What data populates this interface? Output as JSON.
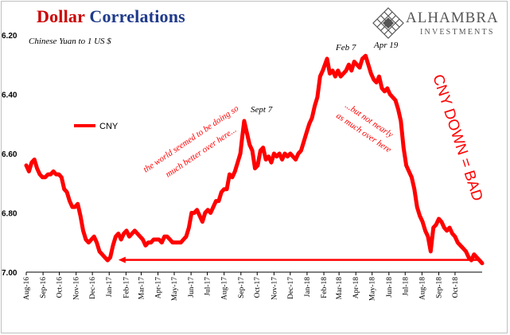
{
  "header": {
    "title_part1": "Dollar",
    "title_part2": "Correlations",
    "title_part1_color": "#cc0000",
    "title_part2_color": "#1f3a8a"
  },
  "logo": {
    "name": "ALHAMBRA",
    "sub": "INVESTMENTS",
    "icon": "diamond-lattice-icon",
    "color": "#555555"
  },
  "chart_data": {
    "type": "line",
    "subtitle": "Chinese Yuan to 1 US $",
    "y_reversed": true,
    "ylim": [
      6.2,
      7.0
    ],
    "yticks": [
      6.2,
      6.4,
      6.6,
      6.8,
      7.0
    ],
    "ytick_labels": [
      "6.20",
      "6.40",
      "6.60",
      "6.80",
      "7.00"
    ],
    "xlim": [
      "2016-08-01",
      "2018-11-20"
    ],
    "xticks": [
      "2016-08-01",
      "2016-09-01",
      "2016-10-01",
      "2016-11-01",
      "2016-12-01",
      "2017-01-01",
      "2017-02-01",
      "2017-03-01",
      "2017-04-01",
      "2017-05-01",
      "2017-06-01",
      "2017-07-01",
      "2017-08-01",
      "2017-09-01",
      "2017-10-01",
      "2017-11-01",
      "2017-12-01",
      "2018-01-01",
      "2018-02-01",
      "2018-03-01",
      "2018-04-01",
      "2018-05-01",
      "2018-06-01",
      "2018-07-01",
      "2018-08-01",
      "2018-09-01",
      "2018-10-01"
    ],
    "xtick_labels": [
      "Aug-16",
      "Sep-16",
      "Oct-16",
      "Nov-16",
      "Dec-16",
      "Jan-17",
      "Feb-17",
      "Mar-17",
      "Apr-17",
      "May-17",
      "Jun-17",
      "Jul-17",
      "Aug-17",
      "Sep-17",
      "Oct-17",
      "Nov-17",
      "Dec-17",
      "Jan-18",
      "Feb-18",
      "Mar-18",
      "Apr-18",
      "May-18",
      "Jun-18",
      "Jul-18",
      "Aug-18",
      "Sep-18",
      "Oct-18"
    ],
    "grid": false,
    "legend": "left",
    "series": [
      {
        "name": "CNY",
        "color": "#ff0000",
        "points": [
          [
            "2016-08-01",
            6.64
          ],
          [
            "2016-08-06",
            6.66
          ],
          [
            "2016-08-11",
            6.63
          ],
          [
            "2016-08-16",
            6.62
          ],
          [
            "2016-08-21",
            6.65
          ],
          [
            "2016-08-26",
            6.67
          ],
          [
            "2016-08-31",
            6.68
          ],
          [
            "2016-09-05",
            6.68
          ],
          [
            "2016-09-10",
            6.67
          ],
          [
            "2016-09-15",
            6.67
          ],
          [
            "2016-09-20",
            6.66
          ],
          [
            "2016-09-25",
            6.67
          ],
          [
            "2016-09-30",
            6.67
          ],
          [
            "2016-10-05",
            6.68
          ],
          [
            "2016-10-10",
            6.72
          ],
          [
            "2016-10-15",
            6.73
          ],
          [
            "2016-10-20",
            6.76
          ],
          [
            "2016-10-25",
            6.78
          ],
          [
            "2016-10-30",
            6.78
          ],
          [
            "2016-11-04",
            6.77
          ],
          [
            "2016-11-09",
            6.81
          ],
          [
            "2016-11-14",
            6.86
          ],
          [
            "2016-11-19",
            6.89
          ],
          [
            "2016-11-24",
            6.9
          ],
          [
            "2016-11-29",
            6.89
          ],
          [
            "2016-12-04",
            6.88
          ],
          [
            "2016-12-09",
            6.9
          ],
          [
            "2016-12-14",
            6.93
          ],
          [
            "2016-12-19",
            6.94
          ],
          [
            "2016-12-24",
            6.95
          ],
          [
            "2016-12-29",
            6.96
          ],
          [
            "2017-01-03",
            6.95
          ],
          [
            "2017-01-08",
            6.91
          ],
          [
            "2017-01-13",
            6.88
          ],
          [
            "2017-01-18",
            6.87
          ],
          [
            "2017-01-23",
            6.89
          ],
          [
            "2017-01-28",
            6.87
          ],
          [
            "2017-02-02",
            6.86
          ],
          [
            "2017-02-07",
            6.88
          ],
          [
            "2017-02-12",
            6.87
          ],
          [
            "2017-02-17",
            6.86
          ],
          [
            "2017-02-22",
            6.87
          ],
          [
            "2017-02-27",
            6.88
          ],
          [
            "2017-03-04",
            6.89
          ],
          [
            "2017-03-09",
            6.91
          ],
          [
            "2017-03-14",
            6.9
          ],
          [
            "2017-03-19",
            6.9
          ],
          [
            "2017-03-24",
            6.89
          ],
          [
            "2017-03-29",
            6.89
          ],
          [
            "2017-04-03",
            6.89
          ],
          [
            "2017-04-08",
            6.9
          ],
          [
            "2017-04-13",
            6.88
          ],
          [
            "2017-04-18",
            6.88
          ],
          [
            "2017-04-23",
            6.89
          ],
          [
            "2017-04-28",
            6.9
          ],
          [
            "2017-05-03",
            6.9
          ],
          [
            "2017-05-08",
            6.9
          ],
          [
            "2017-05-13",
            6.9
          ],
          [
            "2017-05-18",
            6.89
          ],
          [
            "2017-05-23",
            6.88
          ],
          [
            "2017-05-28",
            6.85
          ],
          [
            "2017-06-02",
            6.8
          ],
          [
            "2017-06-07",
            6.8
          ],
          [
            "2017-06-12",
            6.79
          ],
          [
            "2017-06-17",
            6.81
          ],
          [
            "2017-06-22",
            6.83
          ],
          [
            "2017-06-27",
            6.8
          ],
          [
            "2017-07-02",
            6.79
          ],
          [
            "2017-07-07",
            6.8
          ],
          [
            "2017-07-12",
            6.78
          ],
          [
            "2017-07-17",
            6.76
          ],
          [
            "2017-07-22",
            6.76
          ],
          [
            "2017-07-27",
            6.73
          ],
          [
            "2017-08-01",
            6.72
          ],
          [
            "2017-08-06",
            6.72
          ],
          [
            "2017-08-11",
            6.67
          ],
          [
            "2017-08-16",
            6.68
          ],
          [
            "2017-08-21",
            6.66
          ],
          [
            "2017-08-26",
            6.63
          ],
          [
            "2017-08-31",
            6.6
          ],
          [
            "2017-09-03",
            6.55
          ],
          [
            "2017-09-07",
            6.49
          ],
          [
            "2017-09-12",
            6.53
          ],
          [
            "2017-09-17",
            6.57
          ],
          [
            "2017-09-22",
            6.59
          ],
          [
            "2017-09-27",
            6.65
          ],
          [
            "2017-10-02",
            6.64
          ],
          [
            "2017-10-07",
            6.59
          ],
          [
            "2017-10-12",
            6.58
          ],
          [
            "2017-10-17",
            6.62
          ],
          [
            "2017-10-22",
            6.61
          ],
          [
            "2017-10-27",
            6.63
          ],
          [
            "2017-11-01",
            6.6
          ],
          [
            "2017-11-06",
            6.61
          ],
          [
            "2017-11-11",
            6.6
          ],
          [
            "2017-11-16",
            6.62
          ],
          [
            "2017-11-21",
            6.6
          ],
          [
            "2017-11-26",
            6.61
          ],
          [
            "2017-12-01",
            6.6
          ],
          [
            "2017-12-06",
            6.61
          ],
          [
            "2017-12-11",
            6.62
          ],
          [
            "2017-12-16",
            6.6
          ],
          [
            "2017-12-21",
            6.59
          ],
          [
            "2017-12-26",
            6.56
          ],
          [
            "2017-12-31",
            6.53
          ],
          [
            "2018-01-05",
            6.5
          ],
          [
            "2018-01-10",
            6.48
          ],
          [
            "2018-01-15",
            6.44
          ],
          [
            "2018-01-20",
            6.41
          ],
          [
            "2018-01-25",
            6.34
          ],
          [
            "2018-01-30",
            6.32
          ],
          [
            "2018-02-03",
            6.3
          ],
          [
            "2018-02-07",
            6.28
          ],
          [
            "2018-02-12",
            6.33
          ],
          [
            "2018-02-17",
            6.32
          ],
          [
            "2018-02-22",
            6.34
          ],
          [
            "2018-02-27",
            6.32
          ],
          [
            "2018-03-04",
            6.34
          ],
          [
            "2018-03-09",
            6.33
          ],
          [
            "2018-03-14",
            6.32
          ],
          [
            "2018-03-19",
            6.3
          ],
          [
            "2018-03-24",
            6.32
          ],
          [
            "2018-03-29",
            6.29
          ],
          [
            "2018-04-03",
            6.3
          ],
          [
            "2018-04-08",
            6.31
          ],
          [
            "2018-04-13",
            6.28
          ],
          [
            "2018-04-19",
            6.27
          ],
          [
            "2018-04-24",
            6.3
          ],
          [
            "2018-04-29",
            6.33
          ],
          [
            "2018-05-04",
            6.35
          ],
          [
            "2018-05-09",
            6.36
          ],
          [
            "2018-05-14",
            6.34
          ],
          [
            "2018-05-19",
            6.38
          ],
          [
            "2018-05-24",
            6.39
          ],
          [
            "2018-05-29",
            6.38
          ],
          [
            "2018-06-03",
            6.4
          ],
          [
            "2018-06-08",
            6.41
          ],
          [
            "2018-06-13",
            6.42
          ],
          [
            "2018-06-18",
            6.45
          ],
          [
            "2018-06-23",
            6.49
          ],
          [
            "2018-06-28",
            6.58
          ],
          [
            "2018-07-03",
            6.64
          ],
          [
            "2018-07-08",
            6.66
          ],
          [
            "2018-07-13",
            6.68
          ],
          [
            "2018-07-18",
            6.72
          ],
          [
            "2018-07-23",
            6.78
          ],
          [
            "2018-07-28",
            6.81
          ],
          [
            "2018-08-02",
            6.83
          ],
          [
            "2018-08-07",
            6.86
          ],
          [
            "2018-08-12",
            6.88
          ],
          [
            "2018-08-17",
            6.93
          ],
          [
            "2018-08-22",
            6.85
          ],
          [
            "2018-08-27",
            6.84
          ],
          [
            "2018-09-01",
            6.82
          ],
          [
            "2018-09-06",
            6.83
          ],
          [
            "2018-09-11",
            6.85
          ],
          [
            "2018-09-16",
            6.86
          ],
          [
            "2018-09-21",
            6.85
          ],
          [
            "2018-09-26",
            6.87
          ],
          [
            "2018-10-01",
            6.88
          ],
          [
            "2018-10-06",
            6.9
          ],
          [
            "2018-10-11",
            6.91
          ],
          [
            "2018-10-16",
            6.92
          ],
          [
            "2018-10-21",
            6.93
          ],
          [
            "2018-10-26",
            6.95
          ],
          [
            "2018-10-31",
            6.96
          ],
          [
            "2018-11-05",
            6.94
          ],
          [
            "2018-11-10",
            6.95
          ],
          [
            "2018-11-15",
            6.96
          ],
          [
            "2018-11-20",
            6.97
          ]
        ]
      }
    ],
    "annotations": [
      {
        "text": "Sept 7",
        "date": "2017-09-07",
        "value": 6.49
      },
      {
        "text": "Feb 7",
        "date": "2018-02-07",
        "value": 6.28
      },
      {
        "text": "Apr 19",
        "date": "2018-04-19",
        "value": 6.27
      },
      {
        "text": "the world seemed to be doing so",
        "color": "#ff0000"
      },
      {
        "text": "much better over here...",
        "color": "#ff0000"
      },
      {
        "text": "...but not nearly",
        "color": "#ff0000"
      },
      {
        "text": "as much over here",
        "color": "#ff0000"
      },
      {
        "text": "CNY DOWN = BAD",
        "color": "#ff0000"
      }
    ],
    "arrow": {
      "from_date": "2018-11-15",
      "to_date": "2017-01-18",
      "value": 6.96,
      "color": "#ff0000"
    }
  }
}
